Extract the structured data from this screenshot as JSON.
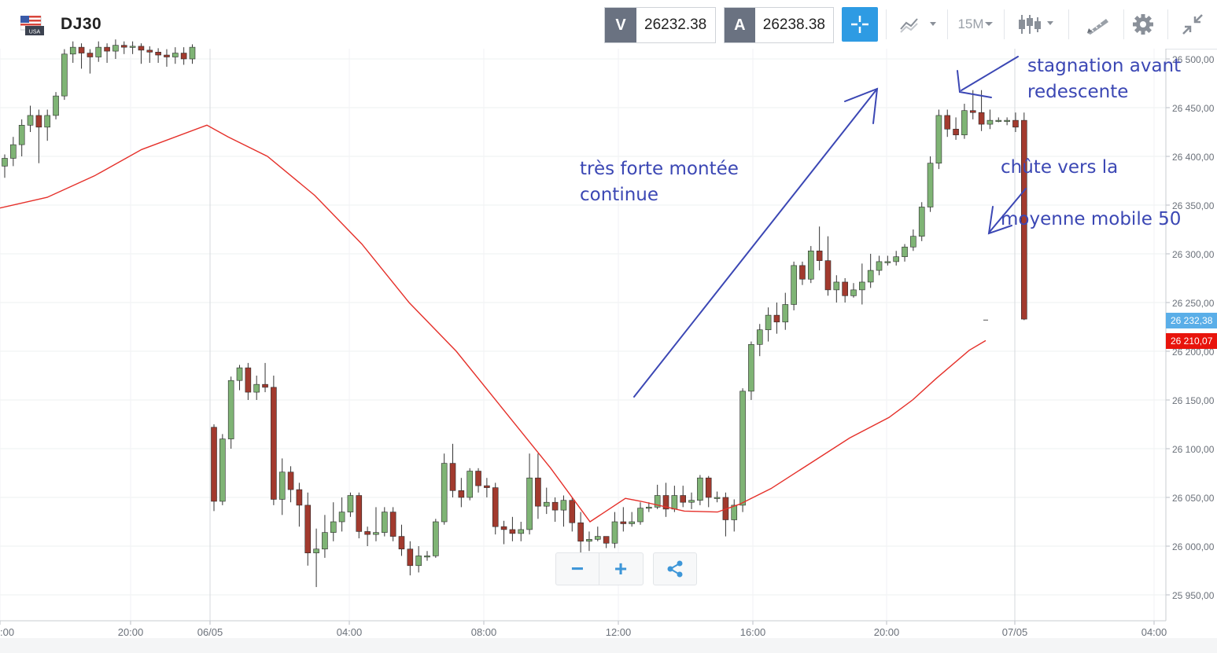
{
  "header": {
    "instrument": "DJ30",
    "flag_label": "USA",
    "bid": {
      "label": "V",
      "value": "26232.38"
    },
    "ask": {
      "label": "A",
      "value": "26238.38"
    },
    "timeframe": "15M"
  },
  "chart_data": {
    "type": "candlestick",
    "y_ticks": [
      "26 500,00",
      "26 450,00",
      "26 400,00",
      "26 350,00",
      "26 300,00",
      "26 250,00",
      "26 200,00",
      "26 150,00",
      "26 100,00",
      "26 050,00",
      "26 000,00",
      "25 950,00"
    ],
    "x_ticks": [
      ":00",
      "20:00",
      "06/05",
      "04:00",
      "08:00",
      "12:00",
      "16:00",
      "20:00",
      "07/05",
      "04:00"
    ],
    "ylim": [
      25925,
      26535
    ],
    "current_bid_label": "26 232,38",
    "current_ma_label": "26 210,07",
    "colors": {
      "bull": "#7fb475",
      "bear": "#a23a2e",
      "ma": "#e5302a",
      "annotation": "#3b47b4",
      "bid_tag": "#5aaee8",
      "ma_tag": "#e8140c"
    },
    "candles": [
      [
        26390,
        26398,
        26378,
        26402
      ],
      [
        26398,
        26412,
        26390,
        26420
      ],
      [
        26412,
        26432,
        26400,
        26438
      ],
      [
        26432,
        26442,
        26425,
        26452
      ],
      [
        26442,
        26430,
        26393,
        26448
      ],
      [
        26430,
        26442,
        26416,
        26448
      ],
      [
        26442,
        26462,
        26438,
        26466
      ],
      [
        26462,
        26505,
        26458,
        26510
      ],
      [
        26505,
        26512,
        26496,
        26518
      ],
      [
        26512,
        26506,
        26490,
        26516
      ],
      [
        26506,
        26502,
        26485,
        26510
      ],
      [
        26502,
        26512,
        26497,
        26518
      ],
      [
        26512,
        26508,
        26496,
        26516
      ],
      [
        26508,
        26514,
        26500,
        26520
      ],
      [
        26514,
        26512,
        26505,
        26518
      ],
      [
        26512,
        26513,
        26505,
        26518
      ],
      [
        26513,
        26509,
        26495,
        26516
      ],
      [
        26509,
        26507,
        26496,
        26513
      ],
      [
        26507,
        26504,
        26496,
        26511
      ],
      [
        26504,
        26502,
        26492,
        26510
      ],
      [
        26502,
        26506,
        26495,
        26512
      ],
      [
        26506,
        26500,
        26494,
        26512
      ],
      [
        26500,
        26512,
        26495,
        26515
      ],
      [
        26122,
        26046,
        26036,
        26125
      ],
      [
        26046,
        26110,
        26042,
        26115
      ],
      [
        26110,
        26170,
        26100,
        26174
      ],
      [
        26170,
        26183,
        26160,
        26186
      ],
      [
        26183,
        26158,
        26150,
        26188
      ],
      [
        26158,
        26166,
        26150,
        26175
      ],
      [
        26166,
        26163,
        26158,
        26188
      ],
      [
        26163,
        26048,
        26042,
        26175
      ],
      [
        26048,
        26076,
        26032,
        26090
      ],
      [
        26076,
        26058,
        26045,
        26082
      ],
      [
        26058,
        26042,
        26020,
        26065
      ],
      [
        26042,
        25993,
        25980,
        26055
      ],
      [
        25993,
        25997,
        25958,
        26018
      ],
      [
        25997,
        26014,
        25988,
        26032
      ],
      [
        26014,
        26025,
        26005,
        26045
      ],
      [
        26025,
        26035,
        26015,
        26050
      ],
      [
        26035,
        26052,
        26030,
        26055
      ],
      [
        26052,
        26015,
        26008,
        26055
      ],
      [
        26015,
        26012,
        26000,
        26020
      ],
      [
        26012,
        26014,
        26005,
        26040
      ],
      [
        26014,
        26035,
        26010,
        26040
      ],
      [
        26035,
        26010,
        26005,
        26040
      ],
      [
        26010,
        25997,
        25990,
        26022
      ],
      [
        25997,
        25980,
        25970,
        26005
      ],
      [
        25980,
        25990,
        25973,
        26000
      ],
      [
        25990,
        25990,
        25985,
        25995
      ],
      [
        25990,
        26025,
        25988,
        26028
      ],
      [
        26025,
        26085,
        26022,
        26095
      ],
      [
        26085,
        26057,
        26050,
        26105
      ],
      [
        26057,
        26050,
        26040,
        26070
      ],
      [
        26050,
        26077,
        26047,
        26080
      ],
      [
        26077,
        26062,
        26055,
        26080
      ],
      [
        26062,
        26060,
        26050,
        26070
      ],
      [
        26060,
        26020,
        26012,
        26065
      ],
      [
        26020,
        26017,
        26002,
        26026
      ],
      [
        26017,
        26013,
        26005,
        26030
      ],
      [
        26013,
        26017,
        26005,
        26025
      ],
      [
        26017,
        26070,
        26012,
        26095
      ],
      [
        26070,
        26041,
        26028,
        26095
      ],
      [
        26041,
        26045,
        26033,
        26060
      ],
      [
        26045,
        26037,
        26025,
        26050
      ],
      [
        26037,
        26047,
        26020,
        26052
      ],
      [
        26047,
        26024,
        26015,
        26050
      ],
      [
        26024,
        26005,
        25992,
        26035
      ],
      [
        26005,
        26007,
        25995,
        26015
      ],
      [
        26007,
        26010,
        26005,
        26020
      ],
      [
        26010,
        26003,
        25998,
        26008
      ],
      [
        26003,
        26025,
        25998,
        26035
      ],
      [
        26025,
        26023,
        26015,
        26040
      ],
      [
        26023,
        26025,
        26020,
        26035
      ],
      [
        26025,
        26039,
        26022,
        26045
      ],
      [
        26039,
        26040,
        26035,
        26045
      ],
      [
        26040,
        26052,
        26038,
        26063
      ],
      [
        26052,
        26038,
        26030,
        26065
      ],
      [
        26038,
        26052,
        26035,
        26062
      ],
      [
        26052,
        26045,
        26040,
        26062
      ],
      [
        26045,
        26047,
        26038,
        26055
      ],
      [
        26047,
        26070,
        26042,
        26073
      ],
      [
        26070,
        26050,
        26040,
        26072
      ],
      [
        26050,
        26050,
        26045,
        26056
      ],
      [
        26050,
        26027,
        26010,
        26055
      ],
      [
        26027,
        26042,
        26015,
        26048
      ],
      [
        26042,
        26159,
        26035,
        26162
      ],
      [
        26159,
        26207,
        26150,
        26210
      ],
      [
        26207,
        26222,
        26195,
        26228
      ],
      [
        26222,
        26237,
        26210,
        26245
      ],
      [
        26237,
        26230,
        26218,
        26250
      ],
      [
        26230,
        26248,
        26222,
        26260
      ],
      [
        26248,
        26288,
        26242,
        26292
      ],
      [
        26288,
        26274,
        26268,
        26292
      ],
      [
        26274,
        26303,
        26270,
        26308
      ],
      [
        26303,
        26293,
        26283,
        26328
      ],
      [
        26293,
        26263,
        26257,
        26318
      ],
      [
        26263,
        26271,
        26250,
        26278
      ],
      [
        26271,
        26257,
        26250,
        26275
      ],
      [
        26257,
        26263,
        26255,
        26270
      ],
      [
        26263,
        26271,
        26248,
        26290
      ],
      [
        26271,
        26283,
        26265,
        26300
      ],
      [
        26283,
        26292,
        26278,
        26298
      ],
      [
        26292,
        26292,
        26288,
        26298
      ],
      [
        26292,
        26297,
        26288,
        26303
      ],
      [
        26297,
        26307,
        26292,
        26310
      ],
      [
        26307,
        26318,
        26303,
        26325
      ],
      [
        26318,
        26348,
        26313,
        26353
      ],
      [
        26348,
        26393,
        26343,
        26400
      ],
      [
        26393,
        26442,
        26387,
        26448
      ],
      [
        26442,
        26428,
        26420,
        26448
      ],
      [
        26428,
        26422,
        26417,
        26440
      ],
      [
        26422,
        26447,
        26418,
        26454
      ],
      [
        26447,
        26445,
        26438,
        26468
      ],
      [
        26445,
        26433,
        26426,
        26468
      ],
      [
        26433,
        26437,
        26428,
        26448
      ],
      [
        26437,
        26437,
        26435,
        26440
      ],
      [
        26437,
        26437,
        26432,
        26440
      ],
      [
        26437,
        26430,
        26425,
        26445
      ],
      [
        26437,
        26233,
        26232,
        26445
      ]
    ],
    "ma50": [
      [
        0,
        26347
      ],
      [
        60,
        26358
      ],
      [
        120,
        26380
      ],
      [
        180,
        26407
      ],
      [
        263,
        26432
      ],
      [
        290,
        26420
      ],
      [
        340,
        26400
      ],
      [
        400,
        26360
      ],
      [
        460,
        26310
      ],
      [
        520,
        26250
      ],
      [
        580,
        26200
      ],
      [
        640,
        26140
      ],
      [
        700,
        26080
      ],
      [
        750,
        26025
      ],
      [
        795,
        26049
      ],
      [
        815,
        26046
      ],
      [
        870,
        26036
      ],
      [
        912,
        26035
      ],
      [
        940,
        26043
      ],
      [
        980,
        26059
      ],
      [
        1030,
        26085
      ],
      [
        1080,
        26111
      ],
      [
        1130,
        26132
      ],
      [
        1160,
        26150
      ],
      [
        1190,
        26172
      ],
      [
        1232,
        26201
      ],
      [
        1253,
        26211
      ]
    ],
    "annotations": {
      "rise_line1": "très forte montée",
      "rise_line2": "continue",
      "stag_line1": "stagnation avant",
      "stag_line2": "redescente",
      "fall_line1": "chûte vers la",
      "fall_line2": "moyenne mobile 50"
    }
  },
  "nav": {
    "zoom_out": "−",
    "zoom_in": "+"
  }
}
